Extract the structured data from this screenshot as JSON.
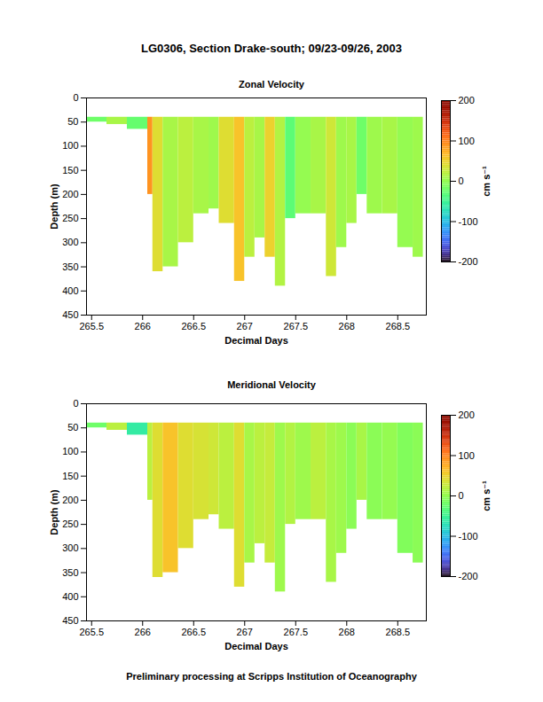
{
  "title": "LG0306, Section Drake-south; 09/23-09/26, 2003",
  "caption": "Preliminary processing at Scripps Institution of Oceanography",
  "chart_data": [
    {
      "type": "heatmap",
      "title": "Zonal Velocity",
      "x_label": "Decimal Days",
      "y_label": "Depth (m)",
      "xlim": [
        265.45,
        268.78
      ],
      "xticks": [
        265.5,
        266,
        266.5,
        267,
        267.5,
        268,
        268.5
      ],
      "ylim": [
        0,
        450
      ],
      "yticks": [
        0,
        50,
        100,
        150,
        200,
        250,
        300,
        350,
        400,
        450
      ],
      "cells": {
        "x_edges": [
          265.45,
          265.65,
          265.85,
          266.05,
          266.1,
          266.2,
          266.35,
          266.5,
          266.65,
          266.75,
          266.9,
          267.0,
          267.1,
          267.2,
          267.3,
          267.4,
          267.5,
          267.65,
          267.8,
          267.9,
          268.0,
          268.1,
          268.2,
          268.35,
          268.5,
          268.65,
          268.75
        ],
        "depth_top": 40,
        "depth_bottom": [
          50,
          55,
          65,
          200,
          360,
          350,
          300,
          240,
          230,
          260,
          380,
          330,
          290,
          330,
          390,
          250,
          240,
          240,
          370,
          310,
          260,
          200,
          240,
          240,
          310,
          330
        ],
        "values": [
          -20,
          10,
          -25,
          90,
          40,
          10,
          20,
          10,
          5,
          40,
          60,
          20,
          10,
          50,
          15,
          -30,
          0,
          10,
          30,
          5,
          10,
          -20,
          5,
          10,
          0,
          5
        ]
      },
      "colorbar": {
        "label": "cm s⁻¹",
        "range": [
          -200,
          200
        ],
        "ticks": [
          -200,
          -100,
          0,
          100,
          200
        ]
      }
    },
    {
      "type": "heatmap",
      "title": "Meridional Velocity",
      "x_label": "Decimal Days",
      "y_label": "Depth (m)",
      "xlim": [
        265.45,
        268.78
      ],
      "xticks": [
        265.5,
        266,
        266.5,
        267,
        267.5,
        268,
        268.5
      ],
      "ylim": [
        0,
        450
      ],
      "yticks": [
        0,
        50,
        100,
        150,
        200,
        250,
        300,
        350,
        400,
        450
      ],
      "cells": {
        "x_edges": [
          265.45,
          265.65,
          265.85,
          266.05,
          266.1,
          266.2,
          266.35,
          266.5,
          266.65,
          266.75,
          266.9,
          267.0,
          267.1,
          267.2,
          267.3,
          267.4,
          267.5,
          267.65,
          267.8,
          267.9,
          268.0,
          268.1,
          268.2,
          268.35,
          268.5,
          268.65,
          268.75
        ],
        "depth_top": 40,
        "depth_bottom": [
          50,
          55,
          65,
          200,
          360,
          350,
          300,
          240,
          230,
          260,
          380,
          330,
          290,
          330,
          390,
          250,
          240,
          240,
          370,
          310,
          260,
          200,
          240,
          240,
          310,
          330
        ],
        "values": [
          -20,
          20,
          -60,
          20,
          40,
          60,
          40,
          35,
          30,
          20,
          40,
          10,
          20,
          25,
          5,
          15,
          5,
          20,
          10,
          5,
          -5,
          10,
          -5,
          0,
          -10,
          -5
        ]
      },
      "colorbar": {
        "label": "cm s⁻¹",
        "range": [
          -200,
          200
        ],
        "ticks": [
          -200,
          -100,
          0,
          100,
          200
        ]
      }
    }
  ]
}
